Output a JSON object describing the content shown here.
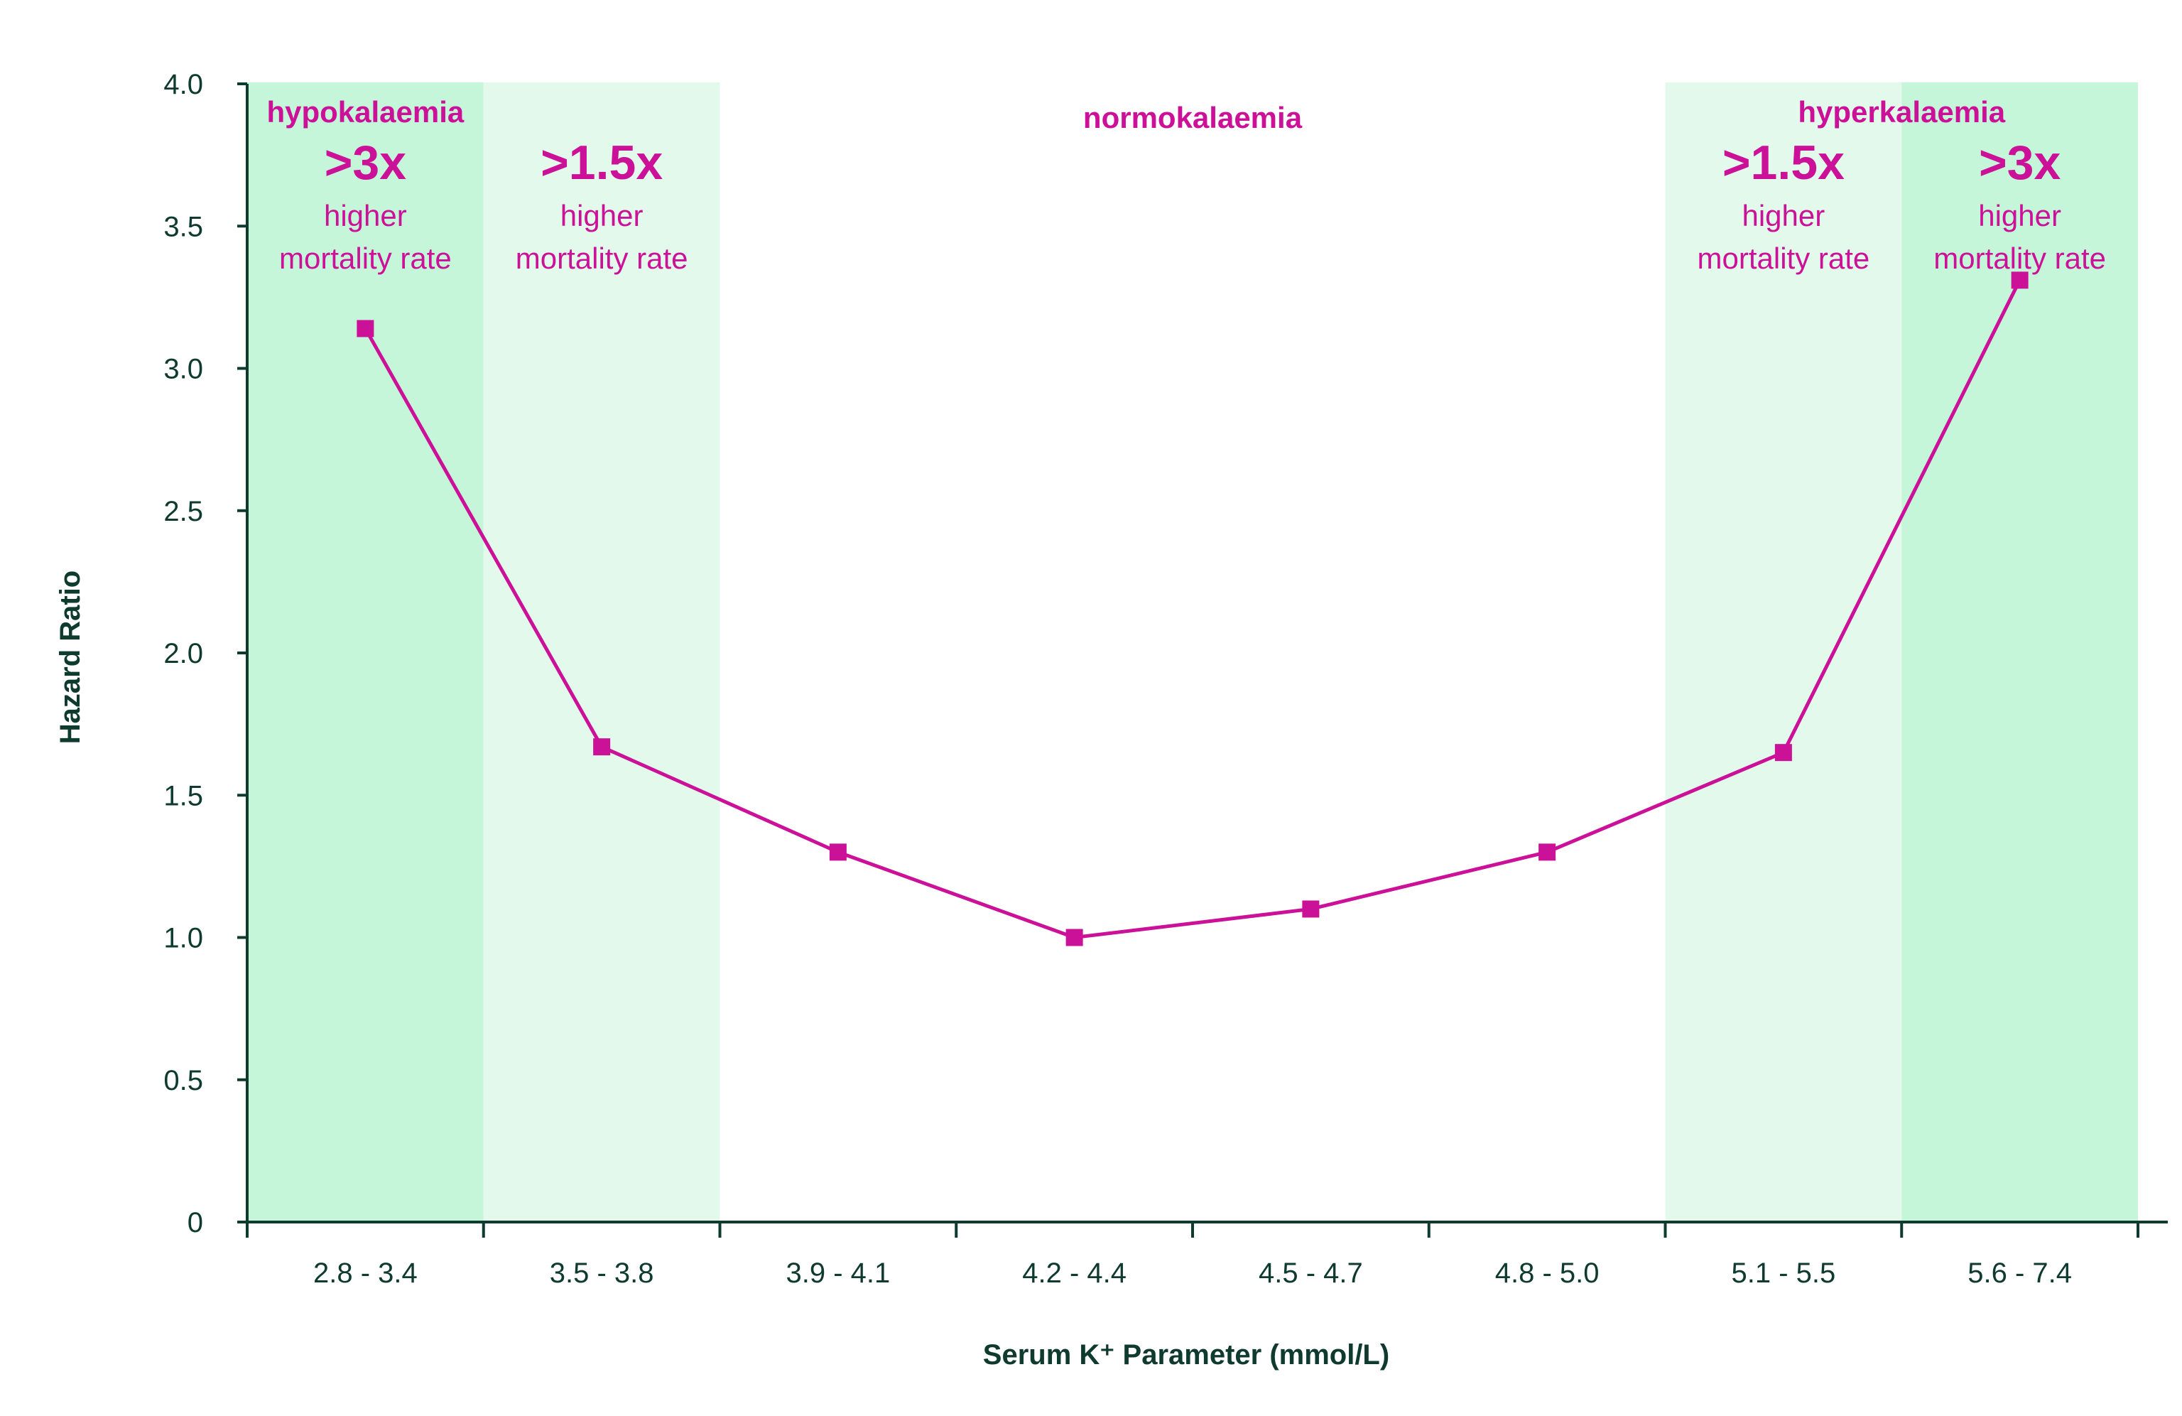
{
  "chart_data": {
    "type": "line",
    "xlabel": "Serum K⁺ Parameter (mmol/L)",
    "ylabel": "Hazard Ratio",
    "ylim": [
      0,
      4
    ],
    "yticks": [
      "0",
      "0.5",
      "1.0",
      "1.5",
      "2.0",
      "2.5",
      "3.0",
      "3.5",
      "4.0"
    ],
    "categories": [
      "2.8 - 3.4",
      "3.5 - 3.8",
      "3.9 - 4.1",
      "4.2 - 4.4",
      "4.5 - 4.7",
      "4.8 - 5.0",
      "5.1 - 5.5",
      "5.6 - 7.4"
    ],
    "series": [
      {
        "values": [
          3.14,
          1.67,
          1.3,
          1.0,
          1.1,
          1.3,
          1.65,
          3.31
        ],
        "color": "#CC1199"
      }
    ],
    "grid": false,
    "zones": [
      {
        "category_index": 0,
        "fill": "#c6f6da",
        "group_label": "hypokalaemia",
        "multiplier": ">3x",
        "line1": "higher",
        "line2": "mortality rate"
      },
      {
        "category_index": 1,
        "fill": "#e2f9eb",
        "group_label": "",
        "multiplier": ">1.5x",
        "line1": "higher",
        "line2": "mortality rate"
      },
      {
        "category_index": 6,
        "fill": "#e2f9eb",
        "group_label": "hyperkalaemia",
        "multiplier": ">1.5x",
        "line1": "higher",
        "line2": "mortality rate"
      },
      {
        "category_index": 7,
        "fill": "#c6f6da",
        "group_label": "",
        "multiplier": ">3x",
        "line1": "higher",
        "line2": "mortality rate"
      }
    ],
    "normal_label": "normokalaemia",
    "colors": {
      "axis": "#0e3b2e",
      "text": "#0e3b2e",
      "accent": "#CC1199",
      "zone_strong": "#c6f6da",
      "zone_light": "#e2f9eb"
    }
  }
}
